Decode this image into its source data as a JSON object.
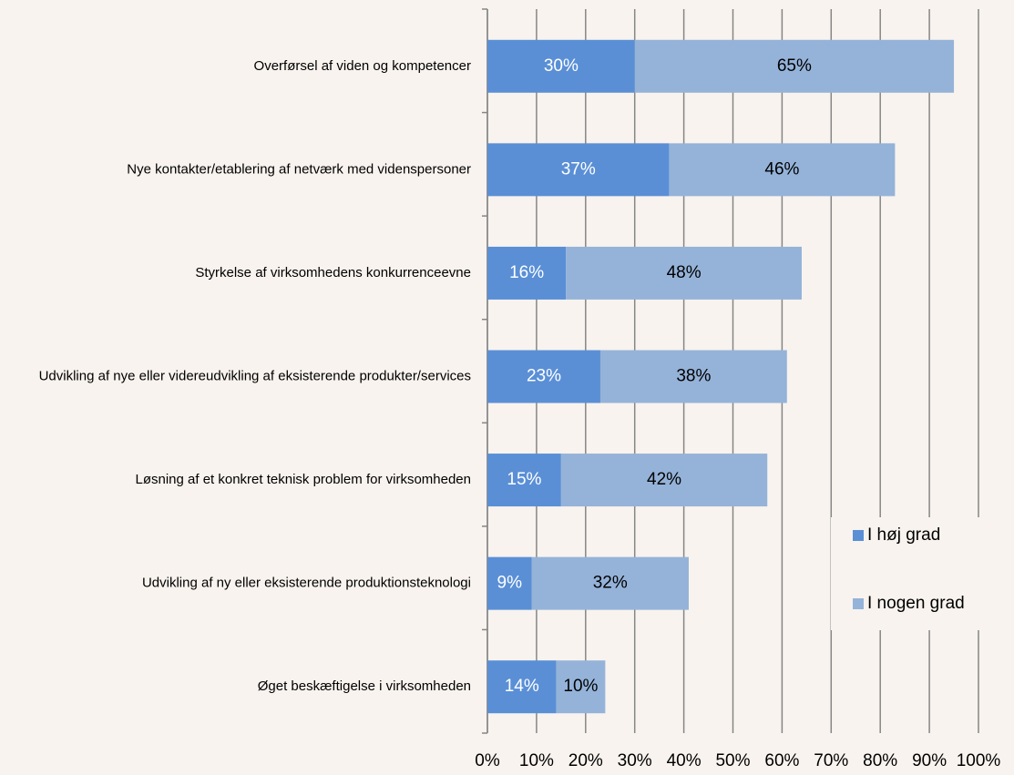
{
  "chart_data": {
    "type": "stacked_barh",
    "categories": [
      "Overførsel af viden og kompetencer",
      "Nye kontakter/etablering af netværk med videnspersoner",
      "Styrkelse af virksomhedens konkurrenceevne",
      "Udvikling af nye eller videreudvikling af eksisterende produkter/services",
      "Løsning af et konkret teknisk problem for virksomheden",
      "Udvikling af ny eller eksisterende produktionsteknologi",
      "Øget beskæftigelse i virksomheden"
    ],
    "series": [
      {
        "name": "I høj grad",
        "color": "#5a8fd6",
        "values": [
          30,
          37,
          16,
          23,
          15,
          9,
          14
        ],
        "value_labels": [
          "30%",
          "37%",
          "16%",
          "23%",
          "15%",
          "9%",
          "14%"
        ]
      },
      {
        "name": "I nogen grad",
        "color": "#95b3d9",
        "values": [
          65,
          46,
          48,
          38,
          42,
          32,
          10
        ],
        "value_labels": [
          "65%",
          "46%",
          "48%",
          "38%",
          "42%",
          "32%",
          "10%"
        ]
      }
    ],
    "xlim": [
      0,
      100
    ],
    "xticks": [
      {
        "value": 0,
        "label": "0%"
      },
      {
        "value": 10,
        "label": "10%"
      },
      {
        "value": 20,
        "label": "20%"
      },
      {
        "value": 30,
        "label": "30%"
      },
      {
        "value": 40,
        "label": "40%"
      },
      {
        "value": 50,
        "label": "50%"
      },
      {
        "value": 60,
        "label": "60%"
      },
      {
        "value": 70,
        "label": "70%"
      },
      {
        "value": 80,
        "label": "80%"
      },
      {
        "value": 90,
        "label": "90%"
      },
      {
        "value": 100,
        "label": "100%"
      }
    ],
    "grid": true,
    "legend": "right"
  }
}
